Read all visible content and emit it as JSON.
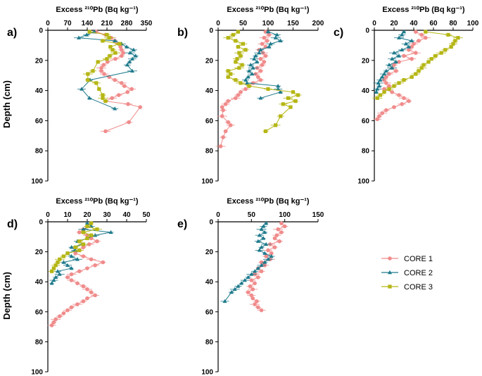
{
  "figure": {
    "ylabel": "Depth (cm)",
    "legend_entries": [
      "CORE 1",
      "CORE 2",
      "CORE 3"
    ]
  },
  "chart_data": [
    {
      "type": "scatter",
      "panel_label": "a)",
      "title": "Excess ²¹⁰Pb (Bq kg⁻¹)",
      "xlim": [
        0,
        350
      ],
      "xticks": [
        0,
        70,
        140,
        210,
        280,
        350
      ],
      "ylim": [
        0,
        100
      ],
      "yticks": [
        0,
        20,
        40,
        60,
        80,
        100
      ],
      "y_inverted": true,
      "xaxis_position": "top",
      "series": [
        {
          "name": "CORE 1",
          "color": "#f08c8c",
          "marker": "circle",
          "x": [
            172,
            205,
            225,
            238,
            252,
            258,
            262,
            268,
            262,
            240,
            212,
            198,
            190,
            190,
            200,
            218,
            238,
            262,
            272,
            298,
            283,
            252,
            228,
            205,
            285,
            328,
            288,
            205
          ],
          "y": [
            1,
            3,
            5,
            7,
            9,
            11,
            13,
            15,
            17,
            19,
            21,
            23,
            25,
            27,
            29,
            31,
            33,
            35,
            37,
            39,
            41,
            43,
            45,
            47,
            49,
            51,
            61,
            67
          ]
        },
        {
          "name": "CORE 2",
          "color": "#1f7a8c",
          "marker": "triangle",
          "x": [
            165,
            138,
            110,
            238,
            262,
            280,
            305,
            292,
            312,
            300,
            290,
            282,
            300,
            150,
            120,
            148,
            238
          ],
          "y": [
            1,
            3,
            5,
            7,
            9,
            11,
            13,
            15,
            17,
            19,
            21,
            23,
            27,
            33,
            39,
            45,
            52
          ]
        },
        {
          "name": "CORE 3",
          "color": "#b5b614",
          "marker": "square",
          "x": [
            148,
            210,
            218,
            195,
            255,
            222,
            230,
            240,
            220,
            210,
            178,
            160,
            142,
            142,
            172,
            182,
            195,
            195,
            205
          ],
          "y": [
            1,
            3,
            5,
            7,
            9,
            11,
            13,
            15,
            17,
            19,
            21,
            27,
            29,
            33,
            35,
            39,
            43,
            45,
            47
          ]
        }
      ]
    },
    {
      "type": "scatter",
      "panel_label": "b)",
      "title": "Excess ²¹⁰Pb (Bq kg⁻¹)",
      "xlim": [
        0,
        200
      ],
      "xticks": [
        0,
        50,
        100,
        150,
        200
      ],
      "ylim": [
        0,
        100
      ],
      "yticks": [
        0,
        20,
        40,
        60,
        80,
        100
      ],
      "y_inverted": true,
      "xaxis_position": "top",
      "series": [
        {
          "name": "CORE 1",
          "color": "#f08c8c",
          "marker": "circle",
          "x": [
            95,
            102,
            92,
            98,
            88,
            95,
            82,
            90,
            95,
            85,
            92,
            88,
            78,
            85,
            75,
            80,
            85,
            70,
            62,
            55,
            45,
            40,
            35,
            20,
            15,
            8,
            10,
            8,
            20,
            25,
            15,
            10,
            5
          ],
          "y": [
            1,
            3,
            5,
            7,
            9,
            11,
            13,
            15,
            17,
            19,
            21,
            23,
            25,
            27,
            29,
            31,
            33,
            35,
            37,
            39,
            41,
            43,
            45,
            47,
            49,
            51,
            53,
            57,
            61,
            63,
            67,
            71,
            77
          ]
        },
        {
          "name": "CORE 2",
          "color": "#1f7a8c",
          "marker": "triangle",
          "x": [
            100,
            118,
            115,
            125,
            105,
            102,
            85,
            82,
            75,
            72,
            78,
            65,
            70,
            62,
            68,
            60,
            55,
            58,
            120,
            120,
            125,
            85
          ],
          "y": [
            1,
            3,
            5,
            7,
            9,
            11,
            13,
            15,
            17,
            19,
            21,
            23,
            25,
            27,
            29,
            31,
            33,
            35,
            37,
            39,
            41,
            45
          ]
        },
        {
          "name": "CORE 3",
          "color": "#b5b614",
          "marker": "square",
          "x": [
            40,
            30,
            20,
            35,
            50,
            40,
            55,
            42,
            45,
            38,
            35,
            48,
            42,
            20,
            25,
            20,
            35,
            45,
            62,
            100,
            150,
            160,
            140,
            155,
            130,
            145,
            125,
            115,
            95
          ],
          "y": [
            1,
            3,
            5,
            7,
            9,
            11,
            13,
            15,
            17,
            19,
            21,
            23,
            25,
            27,
            29,
            31,
            33,
            35,
            37,
            39,
            41,
            43,
            45,
            47,
            49,
            51,
            57,
            63,
            67
          ]
        }
      ]
    },
    {
      "type": "scatter",
      "panel_label": "c)",
      "title": "Excess ²¹⁰Pb (Bq kg⁻¹)",
      "xlim": [
        0,
        100
      ],
      "xticks": [
        0,
        20,
        40,
        60,
        80,
        100
      ],
      "ylim": [
        0,
        100
      ],
      "yticks": [
        0,
        20,
        40,
        60,
        80,
        100
      ],
      "y_inverted": true,
      "xaxis_position": "top",
      "series": [
        {
          "name": "CORE 1",
          "color": "#f08c8c",
          "marker": "circle",
          "x": [
            42,
            48,
            52,
            45,
            40,
            38,
            35,
            42,
            30,
            38,
            25,
            20,
            18,
            22,
            15,
            12,
            10,
            12,
            15,
            10,
            18,
            25,
            30,
            35,
            28,
            20,
            12,
            8,
            5,
            3
          ],
          "y": [
            1,
            3,
            5,
            7,
            9,
            11,
            13,
            15,
            17,
            19,
            21,
            23,
            25,
            27,
            29,
            31,
            33,
            35,
            37,
            39,
            41,
            43,
            45,
            47,
            49,
            51,
            53,
            55,
            57,
            59
          ]
        },
        {
          "name": "CORE 2",
          "color": "#1f7a8c",
          "marker": "triangle",
          "x": [
            30,
            28,
            25,
            38,
            32,
            35,
            28,
            20,
            25,
            18,
            22,
            15,
            18,
            12,
            10,
            8,
            6,
            4,
            5,
            3,
            2
          ],
          "y": [
            1,
            3,
            5,
            7,
            9,
            11,
            13,
            15,
            17,
            19,
            21,
            23,
            25,
            27,
            29,
            31,
            33,
            35,
            37,
            39,
            41
          ]
        },
        {
          "name": "CORE 3",
          "color": "#b5b614",
          "marker": "square",
          "x": [
            52,
            75,
            85,
            82,
            80,
            78,
            72,
            68,
            62,
            58,
            55,
            50,
            48,
            45,
            42,
            38,
            30,
            25,
            20,
            15,
            10,
            6,
            3
          ],
          "y": [
            1,
            3,
            5,
            7,
            9,
            11,
            13,
            15,
            17,
            19,
            21,
            23,
            25,
            27,
            29,
            31,
            33,
            35,
            37,
            39,
            41,
            43,
            45
          ]
        }
      ]
    },
    {
      "type": "scatter",
      "panel_label": "d)",
      "title": "Excess ²¹⁰Pb (Bq kg⁻¹)",
      "xlim": [
        0,
        50
      ],
      "xticks": [
        0,
        10,
        20,
        30,
        40,
        50
      ],
      "ylim": [
        0,
        100
      ],
      "yticks": [
        0,
        20,
        40,
        60,
        80,
        100
      ],
      "y_inverted": true,
      "xaxis_position": "top",
      "series": [
        {
          "name": "CORE 1",
          "color": "#f08c8c",
          "marker": "circle",
          "x": [
            22,
            20,
            18,
            16,
            20,
            22,
            25,
            21,
            18,
            16,
            14,
            18,
            22,
            28,
            24,
            20,
            16,
            12,
            10,
            12,
            15,
            18,
            20,
            22,
            24,
            20,
            18,
            15,
            12,
            10,
            8,
            6,
            4,
            3,
            2
          ],
          "y": [
            1,
            3,
            5,
            7,
            9,
            11,
            13,
            15,
            17,
            19,
            21,
            23,
            25,
            27,
            29,
            31,
            33,
            35,
            37,
            39,
            41,
            43,
            45,
            47,
            49,
            51,
            53,
            55,
            57,
            59,
            61,
            63,
            65,
            67,
            69
          ]
        },
        {
          "name": "CORE 2",
          "color": "#1f7a8c",
          "marker": "triangle",
          "x": [
            20,
            22,
            18,
            32,
            24,
            20,
            15,
            18,
            12,
            14,
            10,
            12,
            15,
            8,
            10,
            12,
            5,
            6,
            4,
            3,
            2
          ],
          "y": [
            1,
            3,
            5,
            7,
            9,
            11,
            13,
            15,
            17,
            19,
            21,
            23,
            25,
            27,
            29,
            31,
            33,
            35,
            37,
            39,
            41
          ]
        },
        {
          "name": "CORE 3",
          "color": "#b5b614",
          "marker": "square",
          "x": [
            22,
            20,
            25,
            18,
            22,
            20,
            16,
            18,
            14,
            16,
            10,
            8,
            6,
            5,
            4,
            3,
            2
          ],
          "y": [
            1,
            3,
            5,
            7,
            9,
            11,
            13,
            15,
            17,
            19,
            21,
            23,
            25,
            27,
            29,
            31,
            33
          ]
        }
      ]
    },
    {
      "type": "scatter",
      "panel_label": "e)",
      "title": "Excess ²¹⁰Pb (Bq kg⁻¹)",
      "xlim": [
        0,
        150
      ],
      "xticks": [
        0,
        50,
        100,
        150
      ],
      "ylim": [
        0,
        100
      ],
      "yticks": [
        0,
        20,
        40,
        60,
        80,
        100
      ],
      "y_inverted": true,
      "xaxis_position": "top",
      "series": [
        {
          "name": "CORE 1",
          "color": "#f08c8c",
          "marker": "circle",
          "x": [
            95,
            100,
            90,
            95,
            88,
            85,
            92,
            78,
            85,
            75,
            80,
            72,
            78,
            65,
            70,
            60,
            65,
            55,
            60,
            50,
            55,
            48,
            52,
            45,
            50,
            52,
            58,
            55,
            60,
            65
          ],
          "y": [
            1,
            3,
            5,
            7,
            9,
            11,
            13,
            15,
            17,
            19,
            21,
            23,
            25,
            27,
            29,
            31,
            33,
            35,
            37,
            39,
            41,
            43,
            45,
            47,
            49,
            51,
            53,
            55,
            57,
            59
          ]
        },
        {
          "name": "CORE 2",
          "color": "#1f7a8c",
          "marker": "triangle",
          "x": [
            72,
            68,
            65,
            70,
            62,
            68,
            60,
            72,
            65,
            62,
            70,
            80,
            75,
            70,
            65,
            60,
            55,
            50,
            45,
            40,
            35,
            30,
            25,
            20,
            10
          ],
          "y": [
            1,
            3,
            5,
            7,
            9,
            11,
            13,
            15,
            17,
            19,
            21,
            23,
            25,
            27,
            29,
            31,
            33,
            35,
            37,
            39,
            41,
            43,
            45,
            47,
            53
          ]
        }
      ]
    }
  ]
}
